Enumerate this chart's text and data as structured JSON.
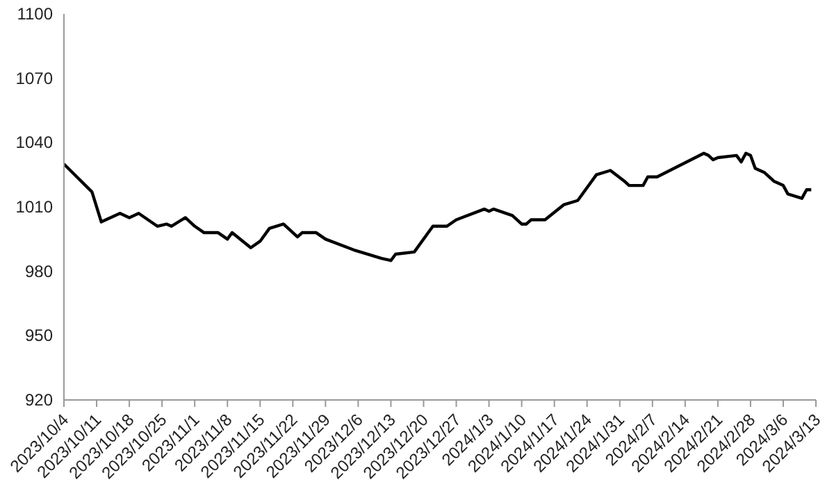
{
  "chart_data": {
    "type": "line",
    "x": [
      "2023-10-04",
      "2023-10-10",
      "2023-10-12",
      "2023-10-16",
      "2023-10-18",
      "2023-10-20",
      "2023-10-24",
      "2023-10-26",
      "2023-10-27",
      "2023-10-30",
      "2023-11-01",
      "2023-11-03",
      "2023-11-06",
      "2023-11-08",
      "2023-11-09",
      "2023-11-13",
      "2023-11-15",
      "2023-11-17",
      "2023-11-20",
      "2023-11-23",
      "2023-11-24",
      "2023-11-27",
      "2023-11-29",
      "2023-12-05",
      "2023-12-11",
      "2023-12-13",
      "2023-12-14",
      "2023-12-18",
      "2023-12-21",
      "2023-12-22",
      "2023-12-25",
      "2023-12-27",
      "2024-01-02",
      "2024-01-03",
      "2024-01-04",
      "2024-01-08",
      "2024-01-10",
      "2024-01-11",
      "2024-01-12",
      "2024-01-15",
      "2024-01-19",
      "2024-01-22",
      "2024-01-26",
      "2024-01-29",
      "2024-02-01",
      "2024-02-02",
      "2024-02-05",
      "2024-02-06",
      "2024-02-08",
      "2024-02-18",
      "2024-02-19",
      "2024-02-20",
      "2024-02-21",
      "2024-02-25",
      "2024-02-26",
      "2024-02-27",
      "2024-02-28",
      "2024-02-29",
      "2024-03-02",
      "2024-03-04",
      "2024-03-06",
      "2024-03-07",
      "2024-03-10",
      "2024-03-11",
      "2024-03-12"
    ],
    "series": [
      {
        "color": "#000000",
        "values": [
          1030,
          1017,
          1003,
          1007,
          1005,
          1007,
          1001,
          1002,
          1001,
          1005,
          1001,
          998,
          998,
          995,
          998,
          991,
          994,
          1000,
          1002,
          996,
          998,
          998,
          995,
          990,
          986,
          985,
          988,
          989,
          998,
          1001,
          1001,
          1004,
          1009,
          1008,
          1009,
          1006,
          1002,
          1002,
          1004,
          1004,
          1011,
          1013,
          1025,
          1027,
          1022,
          1020,
          1020,
          1024,
          1024,
          1035,
          1034,
          1032,
          1033,
          1034,
          1031,
          1035,
          1034,
          1028,
          1026,
          1022,
          1020,
          1016,
          1014,
          1018,
          1018
        ]
      }
    ],
    "xlim": [
      "2023-10-04",
      "2024-03-13"
    ],
    "xticks": [
      {
        "value": "2023-10-04",
        "label": "2023/10/4"
      },
      {
        "value": "2023-10-11",
        "label": "2023/10/11"
      },
      {
        "value": "2023-10-18",
        "label": "2023/10/18"
      },
      {
        "value": "2023-10-25",
        "label": "2023/10/25"
      },
      {
        "value": "2023-11-01",
        "label": "2023/11/1"
      },
      {
        "value": "2023-11-08",
        "label": "2023/11/8"
      },
      {
        "value": "2023-11-15",
        "label": "2023/11/15"
      },
      {
        "value": "2023-11-22",
        "label": "2023/11/22"
      },
      {
        "value": "2023-11-29",
        "label": "2023/11/29"
      },
      {
        "value": "2023-12-06",
        "label": "2023/12/6"
      },
      {
        "value": "2023-12-13",
        "label": "2023/12/13"
      },
      {
        "value": "2023-12-20",
        "label": "2023/12/20"
      },
      {
        "value": "2023-12-27",
        "label": "2023/12/27"
      },
      {
        "value": "2024-01-03",
        "label": "2024/1/3"
      },
      {
        "value": "2024-01-10",
        "label": "2024/1/10"
      },
      {
        "value": "2024-01-17",
        "label": "2024/1/17"
      },
      {
        "value": "2024-01-24",
        "label": "2024/1/24"
      },
      {
        "value": "2024-01-31",
        "label": "2024/1/31"
      },
      {
        "value": "2024-02-07",
        "label": "2024/2/7"
      },
      {
        "value": "2024-02-14",
        "label": "2024/2/14"
      },
      {
        "value": "2024-02-21",
        "label": "2024/2/21"
      },
      {
        "value": "2024-02-28",
        "label": "2024/2/28"
      },
      {
        "value": "2024-03-06",
        "label": "2024/3/6"
      },
      {
        "value": "2024-03-13",
        "label": "2024/3/13"
      }
    ],
    "ylim": [
      920,
      1100
    ],
    "yticks": [
      920,
      950,
      980,
      1010,
      1040,
      1070,
      1100
    ],
    "grid": false,
    "legend": false,
    "marker": "none",
    "line_style": "solid"
  }
}
